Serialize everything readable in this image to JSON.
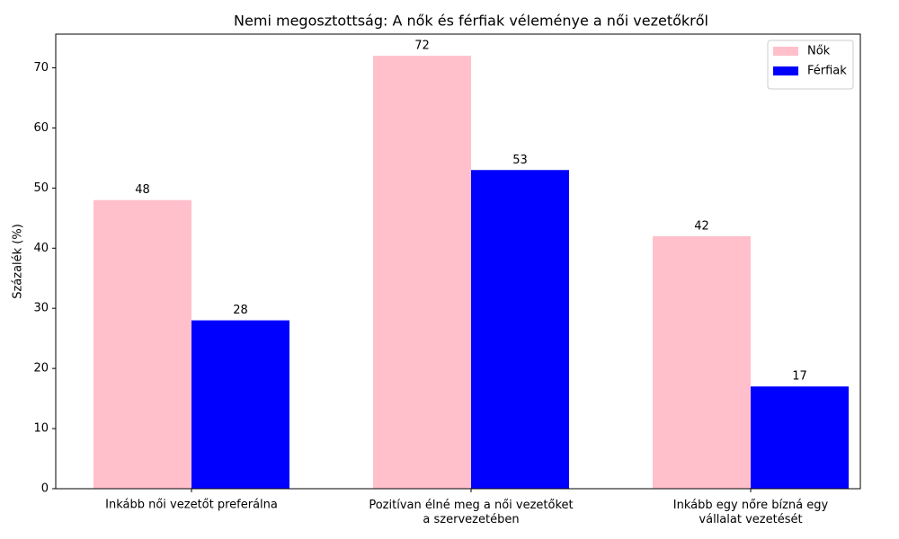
{
  "chart_data": {
    "type": "bar",
    "title": "Nemi megosztottság: A nők és férfiak véleménye a női vezetőkről",
    "y_label": "Százalék (%)",
    "categories": [
      "Inkább női vezetőt preferálna",
      "Pozitívan élné meg a női vezetőket\na szervezetében",
      "Inkább egy nőre bízná egy\nvállalat vezetését"
    ],
    "series": [
      {
        "name": "Nők",
        "color": "#ffc0cb",
        "values": [
          48,
          72,
          42
        ]
      },
      {
        "name": "Férfiak",
        "color": "#0000ff",
        "values": [
          28,
          53,
          17
        ]
      }
    ],
    "ylim": [
      0,
      75.6
    ],
    "yticks": [
      0,
      10,
      20,
      30,
      40,
      50,
      60,
      70
    ],
    "grid": false,
    "legend": "upper right"
  }
}
